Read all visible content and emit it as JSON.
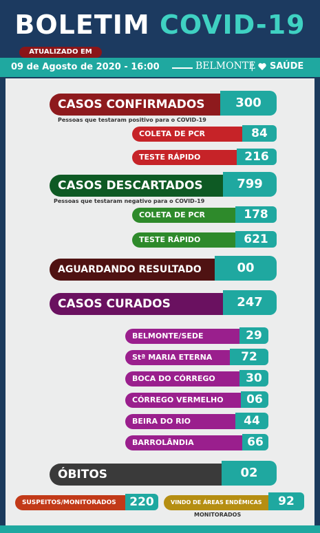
{
  "header": {
    "title_white": "BOLETIM",
    "title_colored": "COVID-19",
    "updated_label": "ATUALIZADO EM",
    "date": "09 de Agosto de 2020 - 16:00",
    "logo_city": "BELMONTE",
    "logo_saude": "SAÚDE"
  },
  "confirmed": {
    "label": "CASOS CONFIRMADOS",
    "value": "300",
    "note": "Pessoas que testaram positivo para o COVID-19",
    "pcr_label": "COLETA DE PCR",
    "pcr_value": "84",
    "rapid_label": "TESTE RÁPIDO",
    "rapid_value": "216"
  },
  "discarded": {
    "label": "CASOS DESCARTADOS",
    "value": "799",
    "note": "Pessoas que testaram negativo para o COVID-19",
    "pcr_label": "COLETA DE PCR",
    "pcr_value": "178",
    "rapid_label": "TESTE RÁPIDO",
    "rapid_value": "621"
  },
  "awaiting": {
    "label": "AGUARDANDO RESULTADO",
    "value": "00"
  },
  "cured": {
    "label": "CASOS CURADOS",
    "value": "247",
    "locations": [
      {
        "label": "BELMONTE/SEDE",
        "value": "29"
      },
      {
        "label": "Stª MARIA ETERNA",
        "value": "72"
      },
      {
        "label": "BOCA DO CÓRREGO",
        "value": "30"
      },
      {
        "label": "CÓRREGO VERMELHO",
        "value": "06"
      },
      {
        "label": "BEIRA DO RIO",
        "value": "44"
      },
      {
        "label": "BARROLÂNDIA",
        "value": "66"
      }
    ]
  },
  "deaths": {
    "label": "ÓBITOS",
    "value": "02"
  },
  "suspects": {
    "label": "SUSPEITOS/MONITORADOS",
    "value": "220"
  },
  "endemic": {
    "label": "VINDO DE ÁREAS ENDÊMICAS",
    "sublabel": "MONITORADOS",
    "value": "92"
  }
}
